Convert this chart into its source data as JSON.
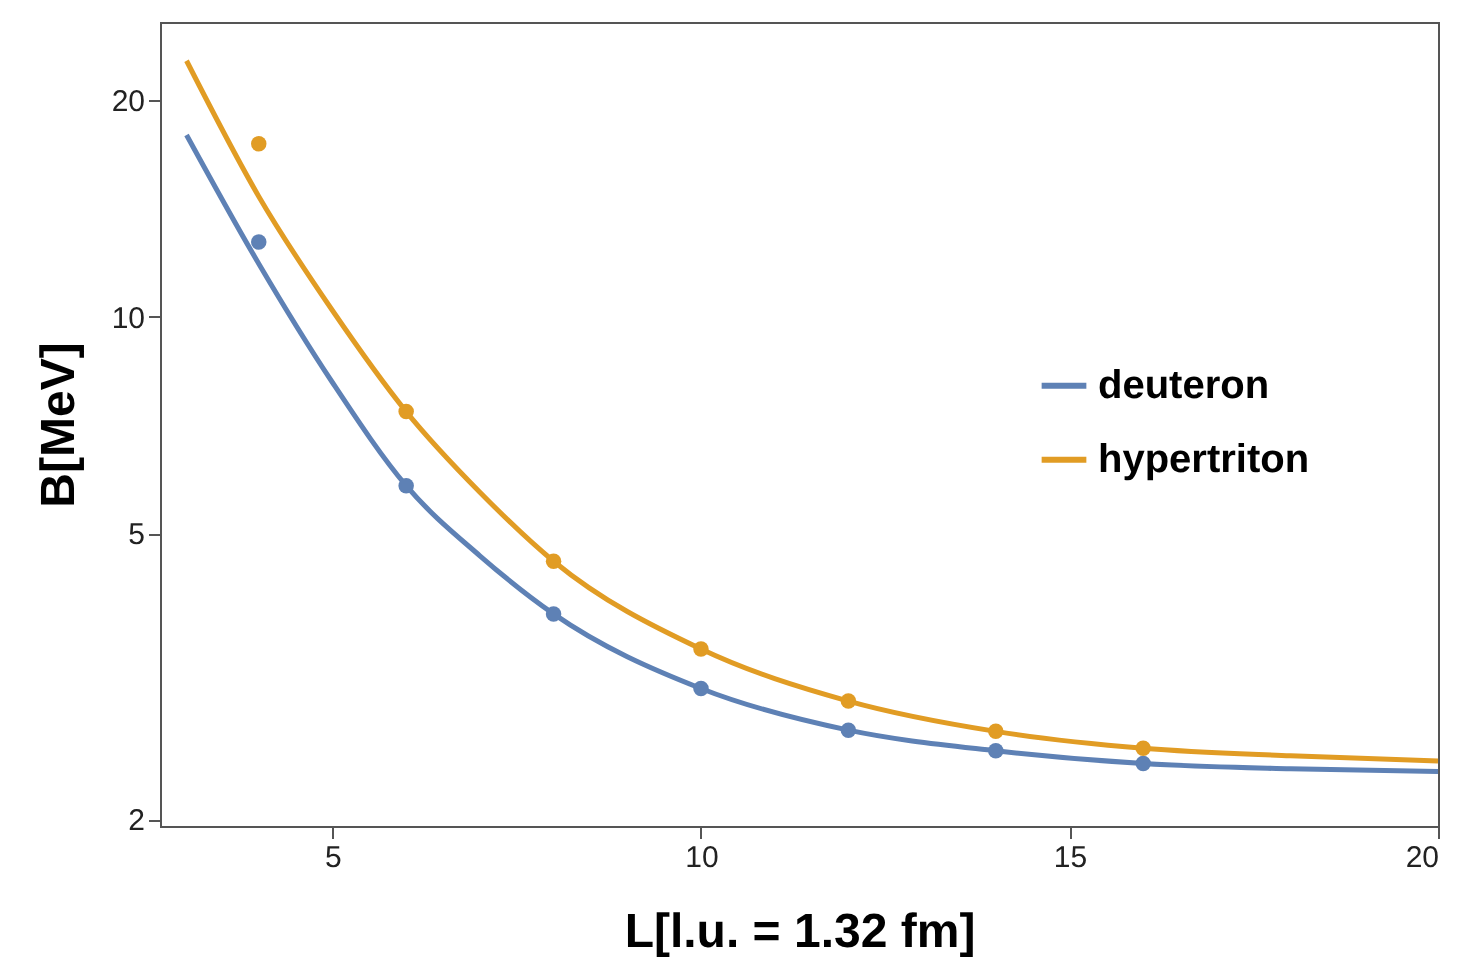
{
  "chart_data": {
    "type": "line",
    "xlabel": "L[l.u. = 1.32 fm]",
    "ylabel": "B[MeV]",
    "log": "y",
    "grid": false,
    "legend": "right",
    "xlim": [
      2.66,
      20
    ],
    "ylim": [
      1.957,
      25.7
    ],
    "xticks": [
      5,
      10,
      15,
      20
    ],
    "yticks": [
      2,
      5,
      10,
      20
    ],
    "series": [
      {
        "name": "deuteron",
        "color": "#5e81b5",
        "x": [
          3.02,
          4,
          5,
          6,
          7,
          8,
          10,
          12,
          14,
          16,
          18,
          20
        ],
        "values": [
          17.9,
          11.85,
          8.1,
          5.82,
          4.65,
          3.86,
          3.04,
          2.66,
          2.49,
          2.39,
          2.35,
          2.33
        ]
      },
      {
        "name": "hypertriton",
        "color": "#e19c24",
        "x": [
          3.02,
          4,
          5,
          6,
          7,
          8,
          10,
          12,
          14,
          16,
          18,
          20
        ],
        "values": [
          22.7,
          14.7,
          10.2,
          7.38,
          5.7,
          4.57,
          3.45,
          2.92,
          2.65,
          2.51,
          2.45,
          2.41
        ]
      },
      {
        "type": "scatter",
        "color": "#5e81b5",
        "marker": "circle",
        "x": [
          4,
          6,
          8,
          10,
          12,
          14,
          16
        ],
        "values": [
          12.7,
          5.82,
          3.86,
          3.04,
          2.66,
          2.49,
          2.39
        ]
      },
      {
        "type": "scatter",
        "color": "#e19c24",
        "marker": "circle",
        "x": [
          4,
          6,
          8,
          10,
          12,
          14,
          16
        ],
        "values": [
          17.4,
          7.38,
          4.57,
          3.45,
          2.92,
          2.65,
          2.51
        ]
      }
    ]
  }
}
